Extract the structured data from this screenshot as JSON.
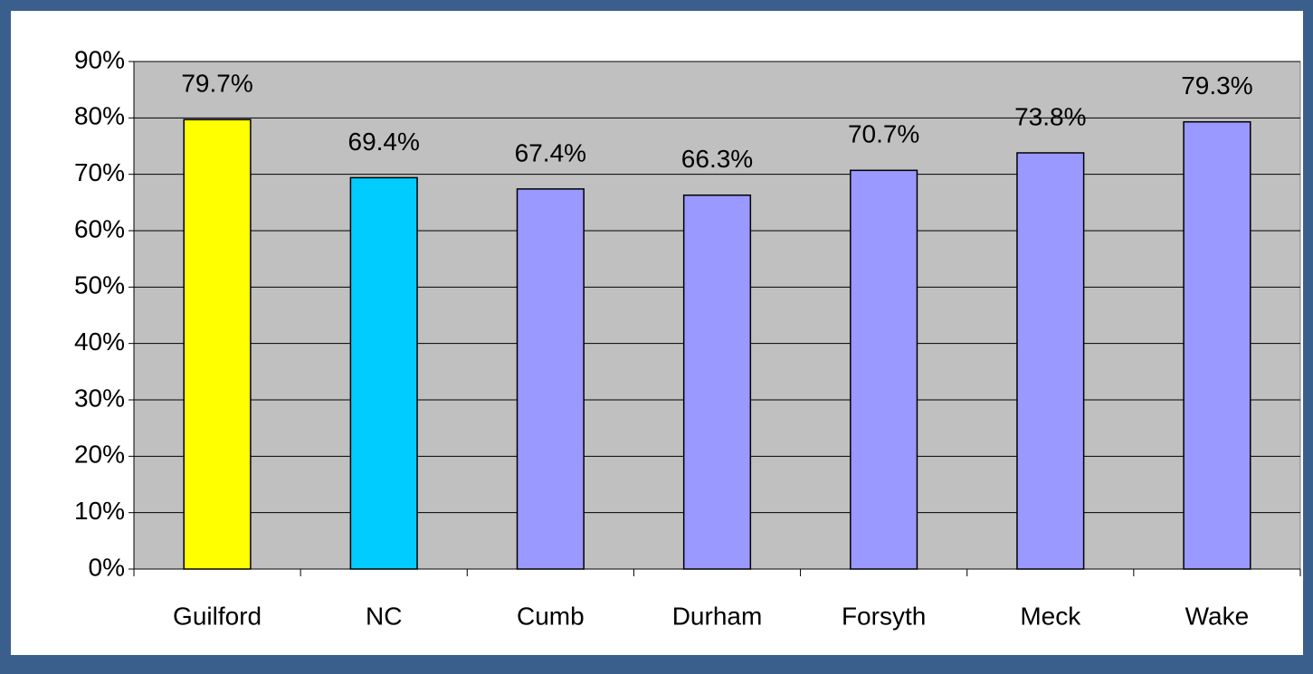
{
  "chart_data": {
    "type": "bar",
    "categories": [
      "Guilford",
      "NC",
      "Cumb",
      "Durham",
      "Forsyth",
      "Meck",
      "Wake"
    ],
    "values": [
      79.7,
      69.4,
      67.4,
      66.3,
      70.7,
      73.8,
      79.3
    ],
    "value_labels": [
      "79.7%",
      "69.4%",
      "67.4%",
      "66.3%",
      "70.7%",
      "73.8%",
      "79.3%"
    ],
    "colors": [
      "#ffff00",
      "#00ccff",
      "#9999ff",
      "#9999ff",
      "#9999ff",
      "#9999ff",
      "#9999ff"
    ],
    "ylim": [
      0,
      90
    ],
    "yticks": [
      {
        "value": 0,
        "label": "0%"
      },
      {
        "value": 10,
        "label": "10%"
      },
      {
        "value": 20,
        "label": "20%"
      },
      {
        "value": 30,
        "label": "30%"
      },
      {
        "value": 40,
        "label": "40%"
      },
      {
        "value": 50,
        "label": "50%"
      },
      {
        "value": 60,
        "label": "60%"
      },
      {
        "value": 70,
        "label": "70%"
      },
      {
        "value": 80,
        "label": "80%"
      },
      {
        "value": 90,
        "label": "90%"
      }
    ],
    "grid": true
  }
}
